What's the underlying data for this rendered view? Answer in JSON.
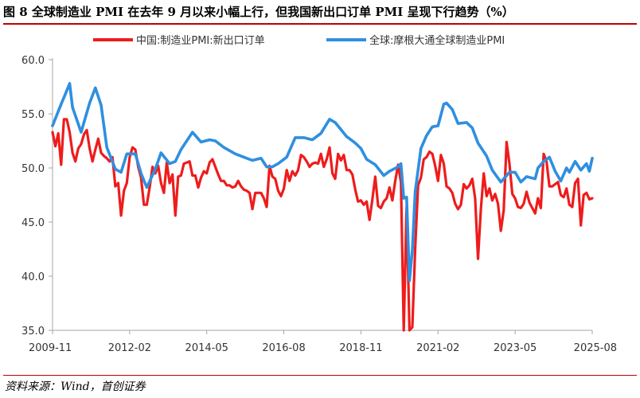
{
  "figure": {
    "title": "图 8  全球制造业 PMI 在去年 9 月以来小幅上行，但我国新出口订单 PMI 呈现下行趋势（%）",
    "source": "资料来源：Wind，首创证券"
  },
  "colors": {
    "china_series": "#ee1c1c",
    "global_series": "#2f8fe0",
    "axis": "#a6a6a6",
    "accent_rule": "#c00000"
  },
  "chart_data": {
    "type": "line",
    "title": "",
    "xlabel": "",
    "ylabel": "",
    "ylim": [
      35,
      60
    ],
    "yticks": [
      "35.0",
      "40.0",
      "45.0",
      "50.0",
      "55.0",
      "60.0"
    ],
    "x_start": "2009-11",
    "x_end": "2025-08",
    "xticks": [
      "2009-11",
      "2012-02",
      "2014-05",
      "2016-08",
      "2018-11",
      "2021-02",
      "2023-05",
      "2025-08"
    ],
    "grid": false,
    "legend_position": "top",
    "series": [
      {
        "name": "中国:制造业PMI:新出口订单",
        "points": [
          [
            "2009-11",
            53.3
          ],
          [
            "2009-12",
            52.0
          ],
          [
            "2010-01",
            53.2
          ],
          [
            "2010-02",
            50.3
          ],
          [
            "2010-03",
            54.5
          ],
          [
            "2010-04",
            54.5
          ],
          [
            "2010-05",
            53.3
          ],
          [
            "2010-06",
            51.4
          ],
          [
            "2010-07",
            50.6
          ],
          [
            "2010-08",
            51.8
          ],
          [
            "2010-09",
            52.2
          ],
          [
            "2010-10",
            53.1
          ],
          [
            "2010-11",
            53.5
          ],
          [
            "2010-12",
            51.8
          ],
          [
            "2011-01",
            50.6
          ],
          [
            "2011-02",
            51.7
          ],
          [
            "2011-03",
            52.7
          ],
          [
            "2011-04",
            51.4
          ],
          [
            "2011-05",
            51.1
          ],
          [
            "2011-06",
            50.9
          ],
          [
            "2011-07",
            50.6
          ],
          [
            "2011-08",
            51.0
          ],
          [
            "2011-09",
            48.3
          ],
          [
            "2011-10",
            48.6
          ],
          [
            "2011-11",
            45.6
          ],
          [
            "2011-12",
            47.9
          ],
          [
            "2012-01",
            48.6
          ],
          [
            "2012-02",
            51.0
          ],
          [
            "2012-03",
            51.9
          ],
          [
            "2012-04",
            51.7
          ],
          [
            "2012-05",
            50.1
          ],
          [
            "2012-06",
            49.1
          ],
          [
            "2012-07",
            46.6
          ],
          [
            "2012-08",
            46.6
          ],
          [
            "2012-09",
            48.2
          ],
          [
            "2012-10",
            50.1
          ],
          [
            "2012-11",
            49.5
          ],
          [
            "2012-12",
            50.2
          ],
          [
            "2013-01",
            48.6
          ],
          [
            "2013-02",
            47.7
          ],
          [
            "2013-03",
            50.5
          ],
          [
            "2013-04",
            48.6
          ],
          [
            "2013-05",
            49.4
          ],
          [
            "2013-06",
            45.6
          ],
          [
            "2013-07",
            49.2
          ],
          [
            "2013-08",
            49.3
          ],
          [
            "2013-09",
            50.4
          ],
          [
            "2013-10",
            50.5
          ],
          [
            "2013-11",
            50.6
          ],
          [
            "2013-12",
            49.3
          ],
          [
            "2014-01",
            49.3
          ],
          [
            "2014-02",
            48.2
          ],
          [
            "2014-03",
            49.1
          ],
          [
            "2014-04",
            49.7
          ],
          [
            "2014-05",
            49.5
          ],
          [
            "2014-06",
            50.5
          ],
          [
            "2014-07",
            50.8
          ],
          [
            "2014-08",
            50.1
          ],
          [
            "2014-09",
            49.4
          ],
          [
            "2014-10",
            48.8
          ],
          [
            "2014-11",
            48.8
          ],
          [
            "2014-12",
            48.4
          ],
          [
            "2015-01",
            48.4
          ],
          [
            "2015-02",
            48.2
          ],
          [
            "2015-03",
            48.3
          ],
          [
            "2015-04",
            48.8
          ],
          [
            "2015-05",
            48.3
          ],
          [
            "2015-06",
            48.0
          ],
          [
            "2015-07",
            47.9
          ],
          [
            "2015-08",
            47.7
          ],
          [
            "2015-09",
            46.2
          ],
          [
            "2015-10",
            47.7
          ],
          [
            "2015-11",
            47.7
          ],
          [
            "2015-12",
            47.7
          ],
          [
            "2016-01",
            47.2
          ],
          [
            "2016-02",
            46.4
          ],
          [
            "2016-03",
            50.2
          ],
          [
            "2016-04",
            49.2
          ],
          [
            "2016-05",
            49.0
          ],
          [
            "2016-06",
            47.9
          ],
          [
            "2016-07",
            47.4
          ],
          [
            "2016-08",
            48.1
          ],
          [
            "2016-09",
            49.8
          ],
          [
            "2016-10",
            48.8
          ],
          [
            "2016-11",
            49.7
          ],
          [
            "2016-12",
            49.3
          ],
          [
            "2017-01",
            49.8
          ],
          [
            "2017-02",
            51.2
          ],
          [
            "2017-03",
            51.0
          ],
          [
            "2017-04",
            50.6
          ],
          [
            "2017-05",
            50.1
          ],
          [
            "2017-06",
            50.4
          ],
          [
            "2017-07",
            50.5
          ],
          [
            "2017-08",
            50.4
          ],
          [
            "2017-09",
            51.3
          ],
          [
            "2017-10",
            50.1
          ],
          [
            "2017-11",
            50.8
          ],
          [
            "2017-12",
            51.9
          ],
          [
            "2018-01",
            49.5
          ],
          [
            "2018-02",
            49.0
          ],
          [
            "2018-03",
            51.3
          ],
          [
            "2018-04",
            50.7
          ],
          [
            "2018-05",
            51.2
          ],
          [
            "2018-06",
            49.8
          ],
          [
            "2018-07",
            49.8
          ],
          [
            "2018-08",
            49.4
          ],
          [
            "2018-09",
            48.0
          ],
          [
            "2018-10",
            46.9
          ],
          [
            "2018-11",
            47.0
          ],
          [
            "2018-12",
            46.6
          ],
          [
            "2019-01",
            46.9
          ],
          [
            "2019-02",
            45.2
          ],
          [
            "2019-03",
            47.1
          ],
          [
            "2019-04",
            49.2
          ],
          [
            "2019-05",
            46.5
          ],
          [
            "2019-06",
            46.3
          ],
          [
            "2019-07",
            46.9
          ],
          [
            "2019-08",
            47.2
          ],
          [
            "2019-09",
            48.2
          ],
          [
            "2019-10",
            47.0
          ],
          [
            "2019-11",
            48.8
          ],
          [
            "2019-12",
            50.3
          ],
          [
            "2020-01",
            48.7
          ],
          [
            "2020-02",
            28.7
          ],
          [
            "2020-03",
            46.4
          ],
          [
            "2020-04",
            33.5
          ],
          [
            "2020-05",
            35.3
          ],
          [
            "2020-06",
            42.6
          ],
          [
            "2020-07",
            48.4
          ],
          [
            "2020-08",
            49.1
          ],
          [
            "2020-09",
            50.8
          ],
          [
            "2020-10",
            51.0
          ],
          [
            "2020-11",
            51.5
          ],
          [
            "2020-12",
            51.3
          ],
          [
            "2021-01",
            50.2
          ],
          [
            "2021-02",
            48.8
          ],
          [
            "2021-03",
            51.2
          ],
          [
            "2021-04",
            50.4
          ],
          [
            "2021-05",
            48.3
          ],
          [
            "2021-06",
            48.1
          ],
          [
            "2021-07",
            47.7
          ],
          [
            "2021-08",
            46.7
          ],
          [
            "2021-09",
            46.2
          ],
          [
            "2021-10",
            46.6
          ],
          [
            "2021-11",
            48.5
          ],
          [
            "2021-12",
            48.1
          ],
          [
            "2022-01",
            48.4
          ],
          [
            "2022-02",
            49.0
          ],
          [
            "2022-03",
            47.2
          ],
          [
            "2022-04",
            41.6
          ],
          [
            "2022-05",
            46.2
          ],
          [
            "2022-06",
            49.5
          ],
          [
            "2022-07",
            47.4
          ],
          [
            "2022-08",
            48.1
          ],
          [
            "2022-09",
            47.0
          ],
          [
            "2022-10",
            47.6
          ],
          [
            "2022-11",
            46.7
          ],
          [
            "2022-12",
            44.2
          ],
          [
            "2023-01",
            46.1
          ],
          [
            "2023-02",
            52.4
          ],
          [
            "2023-03",
            50.4
          ],
          [
            "2023-04",
            47.6
          ],
          [
            "2023-05",
            47.2
          ],
          [
            "2023-06",
            46.4
          ],
          [
            "2023-07",
            46.3
          ],
          [
            "2023-08",
            46.7
          ],
          [
            "2023-09",
            47.8
          ],
          [
            "2023-10",
            46.8
          ],
          [
            "2023-11",
            46.3
          ],
          [
            "2023-12",
            45.8
          ],
          [
            "2024-01",
            47.2
          ],
          [
            "2024-02",
            46.3
          ],
          [
            "2024-03",
            51.3
          ],
          [
            "2024-04",
            50.6
          ],
          [
            "2024-05",
            48.3
          ],
          [
            "2024-06",
            48.3
          ],
          [
            "2024-07",
            48.5
          ],
          [
            "2024-08",
            48.7
          ],
          [
            "2024-09",
            47.5
          ],
          [
            "2024-10",
            47.3
          ],
          [
            "2024-11",
            48.1
          ],
          [
            "2024-12",
            46.6
          ],
          [
            "2025-01",
            46.4
          ],
          [
            "2025-02",
            48.6
          ],
          [
            "2025-03",
            49.0
          ],
          [
            "2025-04",
            44.7
          ],
          [
            "2025-05",
            47.5
          ],
          [
            "2025-06",
            47.7
          ],
          [
            "2025-07",
            47.1
          ],
          [
            "2025-08",
            47.2
          ]
        ]
      },
      {
        "name": "全球:摩根大通全球制造业PMI",
        "points": [
          [
            "2009-11",
            53.9
          ],
          [
            "2010-02",
            55.9
          ],
          [
            "2010-03",
            56.5
          ],
          [
            "2010-05",
            57.8
          ],
          [
            "2010-06",
            55.6
          ],
          [
            "2010-09",
            53.3
          ],
          [
            "2010-12",
            56.0
          ],
          [
            "2011-02",
            57.4
          ],
          [
            "2011-04",
            55.8
          ],
          [
            "2011-06",
            51.9
          ],
          [
            "2011-09",
            49.9
          ],
          [
            "2011-11",
            49.6
          ],
          [
            "2012-01",
            51.3
          ],
          [
            "2012-04",
            51.3
          ],
          [
            "2012-06",
            49.5
          ],
          [
            "2012-08",
            48.2
          ],
          [
            "2012-11",
            49.9
          ],
          [
            "2013-01",
            51.4
          ],
          [
            "2013-04",
            50.4
          ],
          [
            "2013-06",
            50.6
          ],
          [
            "2013-08",
            51.7
          ],
          [
            "2013-12",
            53.3
          ],
          [
            "2014-03",
            52.4
          ],
          [
            "2014-06",
            52.6
          ],
          [
            "2014-08",
            52.5
          ],
          [
            "2014-11",
            51.9
          ],
          [
            "2015-03",
            51.3
          ],
          [
            "2015-06",
            51.0
          ],
          [
            "2015-09",
            50.7
          ],
          [
            "2015-12",
            50.9
          ],
          [
            "2016-02",
            50.1
          ],
          [
            "2016-04",
            50.1
          ],
          [
            "2016-06",
            50.4
          ],
          [
            "2016-09",
            51.0
          ],
          [
            "2016-12",
            52.8
          ],
          [
            "2017-03",
            52.8
          ],
          [
            "2017-06",
            52.6
          ],
          [
            "2017-09",
            53.2
          ],
          [
            "2017-12",
            54.5
          ],
          [
            "2018-02",
            54.2
          ],
          [
            "2018-06",
            52.9
          ],
          [
            "2018-09",
            52.3
          ],
          [
            "2018-11",
            51.8
          ],
          [
            "2019-01",
            50.8
          ],
          [
            "2019-04",
            50.3
          ],
          [
            "2019-07",
            49.3
          ],
          [
            "2019-09",
            49.7
          ],
          [
            "2019-12",
            50.1
          ],
          [
            "2020-01",
            50.4
          ],
          [
            "2020-02",
            47.2
          ],
          [
            "2020-03",
            47.3
          ],
          [
            "2020-04",
            39.6
          ],
          [
            "2020-05",
            42.4
          ],
          [
            "2020-06",
            47.8
          ],
          [
            "2020-08",
            51.8
          ],
          [
            "2020-10",
            53.0
          ],
          [
            "2020-12",
            53.8
          ],
          [
            "2021-02",
            53.9
          ],
          [
            "2021-04",
            55.9
          ],
          [
            "2021-05",
            56.0
          ],
          [
            "2021-07",
            55.4
          ],
          [
            "2021-09",
            54.1
          ],
          [
            "2021-12",
            54.2
          ],
          [
            "2022-02",
            53.7
          ],
          [
            "2022-04",
            52.3
          ],
          [
            "2022-07",
            51.1
          ],
          [
            "2022-09",
            49.8
          ],
          [
            "2022-12",
            48.7
          ],
          [
            "2023-03",
            49.6
          ],
          [
            "2023-05",
            49.6
          ],
          [
            "2023-07",
            48.7
          ],
          [
            "2023-09",
            49.2
          ],
          [
            "2023-12",
            49.0
          ],
          [
            "2024-01",
            50.0
          ],
          [
            "2024-03",
            50.6
          ],
          [
            "2024-05",
            51.0
          ],
          [
            "2024-07",
            49.7
          ],
          [
            "2024-09",
            48.8
          ],
          [
            "2024-11",
            50.0
          ],
          [
            "2024-12",
            49.6
          ],
          [
            "2025-02",
            50.6
          ],
          [
            "2025-04",
            49.8
          ],
          [
            "2025-06",
            50.4
          ],
          [
            "2025-07",
            49.7
          ],
          [
            "2025-08",
            50.9
          ]
        ]
      }
    ]
  }
}
